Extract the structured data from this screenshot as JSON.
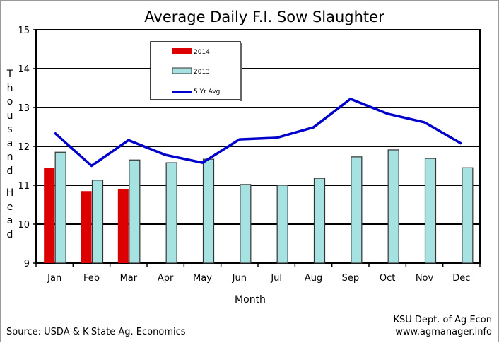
{
  "chart_data": {
    "type": "bar",
    "title": "Average Daily F.I. Sow Slaughter",
    "xlabel": "Month",
    "ylabel": "Thousand Head",
    "ylabel_top": "Thousand",
    "ylabel_bottom": "Head",
    "ylim": [
      9,
      15
    ],
    "yticks": [
      9,
      10,
      11,
      12,
      13,
      14,
      15
    ],
    "grid": true,
    "legend_position": "top-left",
    "categories": [
      "Jan",
      "Feb",
      "Mar",
      "Apr",
      "May",
      "Jun",
      "Jul",
      "Aug",
      "Sep",
      "Oct",
      "Nov",
      "Dec"
    ],
    "series": [
      {
        "name": "2014",
        "kind": "bar",
        "color": "#dd0000",
        "values": [
          11.44,
          10.85,
          10.91,
          null,
          null,
          null,
          null,
          null,
          null,
          null,
          null,
          null
        ]
      },
      {
        "name": "2013",
        "kind": "bar",
        "color": "#a6e2e2",
        "values": [
          11.85,
          11.13,
          11.65,
          11.58,
          11.67,
          11.02,
          11.0,
          11.18,
          11.73,
          11.91,
          11.69,
          11.45
        ]
      },
      {
        "name": "5 Yr Avg",
        "kind": "line",
        "color": "#0000cc",
        "values": [
          12.35,
          11.5,
          12.16,
          11.78,
          11.58,
          12.18,
          12.22,
          12.49,
          13.22,
          12.84,
          12.62,
          12.07
        ]
      }
    ]
  },
  "footer": {
    "source": "Source:  USDA & K-State Ag. Economics",
    "credit_line1": "KSU Dept. of Ag Econ",
    "credit_line2": "www.agmanager.info"
  }
}
